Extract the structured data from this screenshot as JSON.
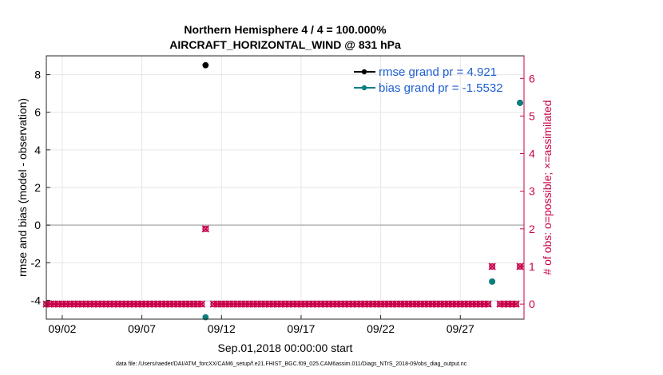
{
  "chart_data": {
    "type": "scatter",
    "title": [
      "Northern Hemisphere 4 / 4 = 100.000%",
      "AIRCRAFT_HORIZONTAL_WIND @ 831 hPa"
    ],
    "xlabel": "Sep.01,2018 00:00:00 start",
    "ylabel_left": "rmse and bias (model - observation)",
    "ylabel_right": "# of obs: o=possible; ×=assimilated",
    "x_ticks": [
      {
        "day": 2,
        "label": "09/02"
      },
      {
        "day": 7,
        "label": "09/07"
      },
      {
        "day": 12,
        "label": "09/12"
      },
      {
        "day": 17,
        "label": "09/17"
      },
      {
        "day": 22,
        "label": "09/22"
      },
      {
        "day": 27,
        "label": "09/27"
      }
    ],
    "xlim": [
      1.0,
      31.0
    ],
    "ylim_left": [
      -5,
      9
    ],
    "y_ticks_left": [
      -4,
      -2,
      0,
      2,
      4,
      6,
      8
    ],
    "ylim_right": [
      -0.4,
      6.6
    ],
    "y_ticks_right": [
      0,
      1,
      2,
      3,
      4,
      5,
      6
    ],
    "zero_line": 0,
    "grid": true,
    "legend_position": "top-right",
    "colors": {
      "rmse": "#000000",
      "bias": "#0a7f7f",
      "nobs": "#c8004a",
      "grid": "#e6e6e6",
      "zero": "#b5b5b5"
    },
    "series": [
      {
        "name": "rmse grand pr = 4.921",
        "key": "rmse",
        "points": [
          [
            11.0,
            8.5
          ],
          [
            29.0,
            -3.0
          ],
          [
            30.75,
            6.5
          ]
        ]
      },
      {
        "name": "bias grand pr = -1.5532",
        "key": "bias",
        "points": [
          [
            11.0,
            -4.9
          ],
          [
            29.0,
            -3.0
          ],
          [
            30.75,
            6.5
          ]
        ]
      }
    ],
    "obs_count": {
      "times_start": 1.0,
      "times_end": 31.0,
      "times_step": 0.25,
      "nonzero": [
        [
          11.0,
          2
        ],
        [
          29.0,
          1
        ],
        [
          30.75,
          1
        ]
      ],
      "missing_markers": [
        11.25,
        29.25,
        31.0
      ]
    }
  },
  "footer": "data file: /Users/raeder/DAI/ATM_forcXX/CAM6_setup/f.e21.FHIST_BGC.f09_025.CAM6assim.011/Diags_NTrS_2018-09/obs_diag_output.nc"
}
